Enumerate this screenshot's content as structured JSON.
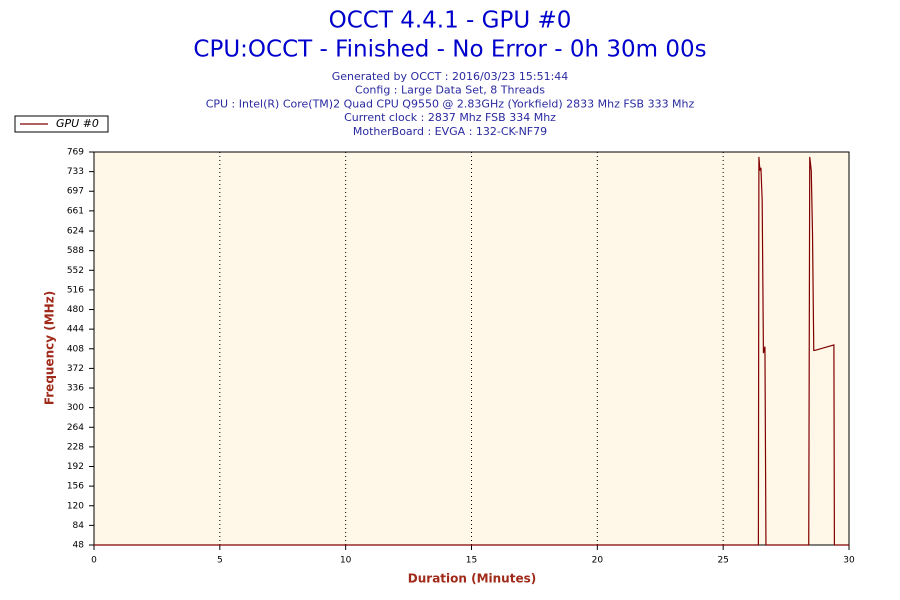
{
  "chart_data": {
    "type": "line",
    "title": "OCCT 4.4.1 - GPU #0",
    "subtitle": "CPU:OCCT - Finished - No Error - 0h 30m 00s",
    "info": [
      "Generated by OCCT : 2016/03/23 15:51:44",
      "Config : Large Data Set, 8 Threads",
      "CPU : Intel(R) Core(TM)2 Quad CPU Q9550 @ 2.83GHz (Yorkfield) 2833 Mhz FSB 333 Mhz",
      "Current clock : 2837 Mhz FSB 334 Mhz",
      "MotherBoard : EVGA : 132-CK-NF79"
    ],
    "xlabel": "Duration (Minutes)",
    "ylabel": "Frequency (MHz)",
    "x": [
      0,
      26.4,
      26.42,
      26.46,
      26.5,
      26.55,
      26.6,
      26.66,
      26.7,
      26.72,
      28.4,
      28.44,
      28.5,
      28.55,
      28.6,
      28.64,
      29.4,
      29.42,
      29.45,
      30
    ],
    "series": [
      {
        "name": "GPU #0",
        "color": "#800000",
        "values": [
          48,
          48,
          760,
          735,
          740,
          680,
          400,
          412,
          48,
          48,
          48,
          760,
          735,
          620,
          405,
          405,
          415,
          48,
          48,
          48
        ]
      }
    ],
    "xlim": [
      0,
      30
    ],
    "ylim": [
      48,
      769
    ],
    "xticks": [
      0,
      5,
      10,
      15,
      20,
      25,
      30
    ],
    "yticks": [
      48,
      84,
      120,
      156,
      192,
      228,
      264,
      300,
      336,
      372,
      408,
      444,
      480,
      516,
      552,
      588,
      624,
      661,
      697,
      733,
      769
    ],
    "grid": "x",
    "legend": "top-left",
    "plot_background": "#fff8e8"
  }
}
